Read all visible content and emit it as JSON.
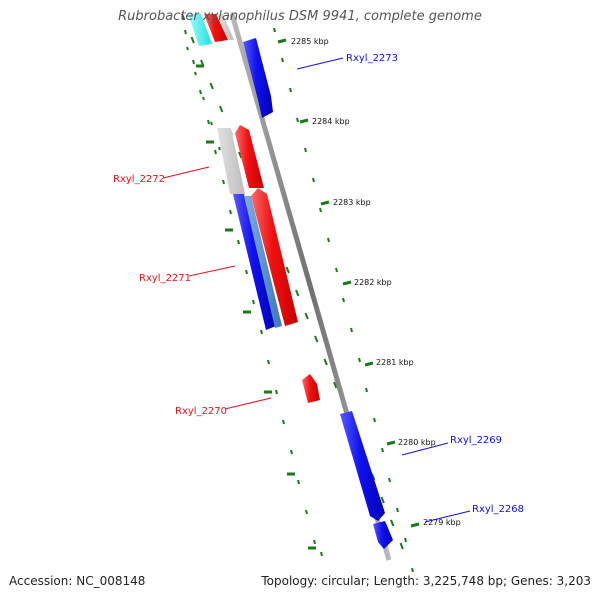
{
  "title": "Rubrobacter xylanophilus DSM 9941, complete genome",
  "accession_label": "Accession: NC_008148",
  "topology_label": "Topology: circular; Length: 3,225,748 bp; Genes: 3,203",
  "colors": {
    "forward": "#e8101a",
    "reverse": "#1010e6",
    "rna": "#3aa0d8",
    "pseudo": "#c8c8c8",
    "cyan": "#2ef0f0",
    "backbone": "#8a8a8a",
    "tick": "#1a7a1a"
  },
  "scale_marks": [
    {
      "label": "2285 kbp"
    },
    {
      "label": "2284 kbp"
    },
    {
      "label": "2283 kbp"
    },
    {
      "label": "2282 kbp"
    },
    {
      "label": "2281 kbp"
    },
    {
      "label": "2280 kbp"
    },
    {
      "label": "2279 kbp"
    }
  ],
  "gene_labels": [
    {
      "name": "Rxyl_2273",
      "strand": "reverse"
    },
    {
      "name": "Rxyl_2272",
      "strand": "forward"
    },
    {
      "name": "Rxyl_2271",
      "strand": "forward"
    },
    {
      "name": "Rxyl_2270",
      "strand": "forward"
    },
    {
      "name": "Rxyl_2269",
      "strand": "reverse"
    },
    {
      "name": "Rxyl_2268",
      "strand": "reverse"
    }
  ]
}
